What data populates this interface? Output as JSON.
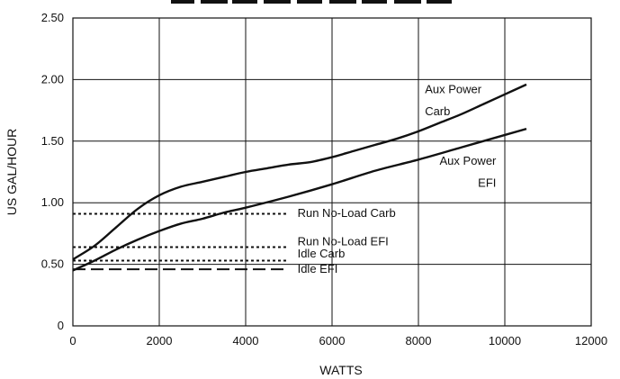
{
  "colors": {
    "line": "#111111",
    "grid": "#111111",
    "background": "#ffffff"
  },
  "chart_data": {
    "type": "line",
    "title": "",
    "xlabel": "WATTS",
    "ylabel": "US GAL/HOUR",
    "xlim": [
      0,
      12000
    ],
    "ylim": [
      0,
      2.5
    ],
    "x_ticks": [
      0,
      2000,
      4000,
      6000,
      8000,
      10000,
      12000
    ],
    "x_tick_labels": [
      "0",
      "2000",
      "4000",
      "6000",
      "8000",
      "10000",
      "12000"
    ],
    "y_ticks": [
      0,
      0.5,
      1.0,
      1.5,
      2.0,
      2.5
    ],
    "y_tick_labels": [
      "0",
      "0.50",
      "1.00",
      "1.50",
      "2.00",
      "2.50"
    ],
    "grid": true,
    "series": [
      {
        "name": "Aux Power Carb",
        "style": "solid",
        "x": [
          0,
          500,
          1000,
          1500,
          2000,
          2500,
          3000,
          3500,
          4000,
          4500,
          5000,
          5500,
          6000,
          6500,
          7000,
          7500,
          8000,
          8500,
          9000,
          9500,
          10000,
          10500
        ],
        "y": [
          0.54,
          0.65,
          0.8,
          0.95,
          1.06,
          1.13,
          1.17,
          1.21,
          1.25,
          1.28,
          1.31,
          1.33,
          1.37,
          1.42,
          1.47,
          1.52,
          1.58,
          1.65,
          1.72,
          1.8,
          1.88,
          1.96
        ]
      },
      {
        "name": "Aux Power EFI",
        "style": "solid",
        "x": [
          0,
          500,
          1000,
          1500,
          2000,
          2500,
          3000,
          3500,
          4000,
          5000,
          6000,
          7000,
          8000,
          9000,
          10000,
          10500
        ],
        "y": [
          0.45,
          0.53,
          0.62,
          0.7,
          0.77,
          0.83,
          0.87,
          0.92,
          0.96,
          1.05,
          1.15,
          1.26,
          1.35,
          1.45,
          1.55,
          1.6
        ]
      },
      {
        "name": "Run No-Load Carb",
        "style": "dotted",
        "x": [
          0,
          5000
        ],
        "y": [
          0.91,
          0.91
        ]
      },
      {
        "name": "Run No-Load EFI",
        "style": "dotted",
        "x": [
          0,
          5000
        ],
        "y": [
          0.64,
          0.64
        ]
      },
      {
        "name": "Idle Carb",
        "style": "dotted",
        "x": [
          0,
          5000
        ],
        "y": [
          0.53,
          0.53
        ]
      },
      {
        "name": "Idle EFI",
        "style": "dashed",
        "x": [
          0,
          5000
        ],
        "y": [
          0.46,
          0.46
        ]
      }
    ],
    "annotations": [
      {
        "id": "aux-carb-1",
        "text": "Aux Power",
        "x": 8150,
        "y": 1.89,
        "anchor": "start"
      },
      {
        "id": "aux-carb-2",
        "text": "Carb",
        "x": 8150,
        "y": 1.71,
        "anchor": "start"
      },
      {
        "id": "aux-efi-1",
        "text": "Aux Power",
        "x": 9800,
        "y": 1.31,
        "anchor": "end"
      },
      {
        "id": "aux-efi-2",
        "text": "EFI",
        "x": 9800,
        "y": 1.13,
        "anchor": "end"
      },
      {
        "id": "run-carb",
        "text": "Run No-Load Carb",
        "x": 5200,
        "y": 0.885,
        "anchor": "start"
      },
      {
        "id": "run-efi",
        "text": "Run No-Load EFI",
        "x": 5200,
        "y": 0.655,
        "anchor": "start"
      },
      {
        "id": "idle-carb",
        "text": "Idle Carb",
        "x": 5200,
        "y": 0.555,
        "anchor": "start"
      },
      {
        "id": "idle-efi",
        "text": "Idle EFI",
        "x": 5200,
        "y": 0.43,
        "anchor": "start"
      }
    ]
  }
}
